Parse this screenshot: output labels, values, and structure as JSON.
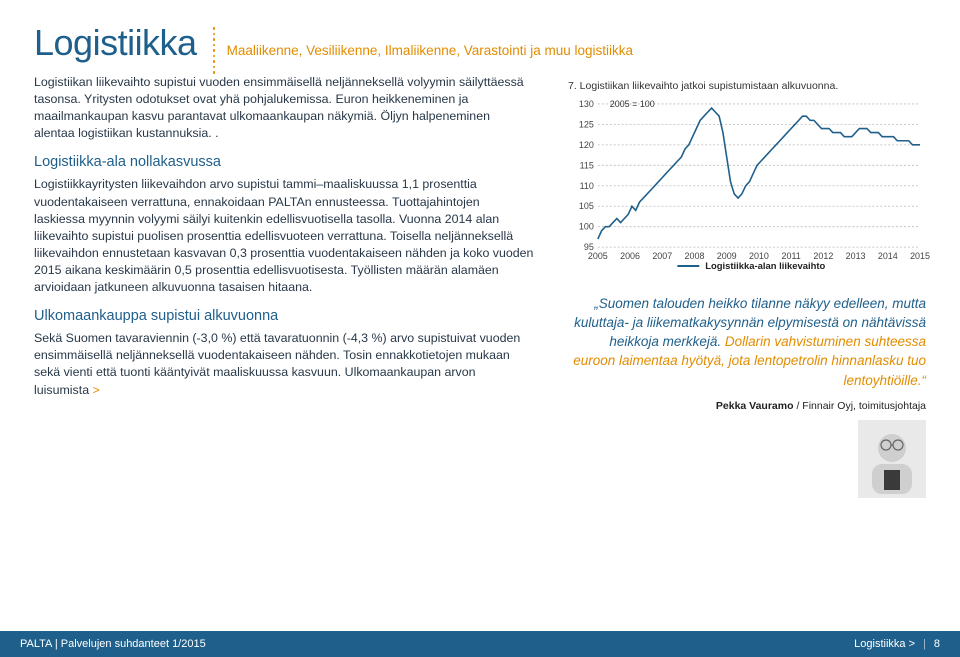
{
  "header": {
    "title": "Logistiikka",
    "subtitle": "Maaliikenne, Vesiliikenne, Ilmaliikenne, Varastointi ja muu logistiikka"
  },
  "body": {
    "intro": "Logistiikan liikevaihto supistui vuoden ensimmäisellä neljänneksellä volyymin säilyttäessä tasonsa. Yritysten odotukset ovat yhä pohjalukemissa. Euron heikkeneminen ja maailmankaupan kasvu parantavat ulkomaankaupan näkymiä. Öljyn halpeneminen alentaa logistiikan kustannuksia. .",
    "h1": "Logistiikka-ala nollakasvussa",
    "p1": "Logistiikkayritysten liikevaihdon arvo supistui tammi–maaliskuussa 1,1 prosenttia vuodentakaiseen verrattuna, ennakoidaan PALTAn ennusteessa. Tuottajahintojen laskiessa myynnin volyymi säilyi kuitenkin edellisvuotisella tasolla. Vuonna 2014 alan liikevaihto supistui puolisen prosenttia edellisvuoteen verrattuna. Toisella neljänneksellä liikevaihdon ennustetaan kasvavan 0,3 prosenttia vuodentakaiseen nähden ja koko vuoden 2015 aikana keskimäärin 0,5 prosenttia edellisvuotisesta. Työllisten määrän alamäen arvioidaan jatkuneen alkuvuonna tasaisen hitaana.",
    "h2": "Ulkomaankauppa supistui alkuvuonna",
    "p2a": "Sekä Suomen tavaraviennin (-3,0 %) että tavaratuonnin (-4,3 %) arvo supistuivat vuoden ensimmäisellä neljänneksellä vuodentakaiseen nähden. Tosin ennakkotietojen mukaan sekä vienti että tuonti kääntyivät maaliskuussa kasvuun. Ulkomaankaupan arvon luisumista ",
    "p2more": ">"
  },
  "chart": {
    "title": "7. Logistiikan liikevaihto jatkoi supistumistaan alkuvuonna.",
    "index_note": "2005 = 100",
    "ylim": [
      95,
      130
    ],
    "ytick_step": 5,
    "xcats": [
      "2005",
      "2006",
      "2007",
      "2008",
      "2009",
      "2010",
      "2011",
      "2012",
      "2013",
      "2014",
      "2015"
    ],
    "series_name": "Logistiikka-alan liikevaihto",
    "series_color": "#1f5f8b",
    "grid_color": "#bbbbbb",
    "background_color": "#ffffff",
    "line_width": 1.6,
    "label_fontsize": 9,
    "values": [
      97,
      99,
      100,
      100,
      101,
      102,
      101,
      102,
      103,
      105,
      104,
      106,
      107,
      108,
      109,
      110,
      111,
      112,
      113,
      114,
      115,
      116,
      117,
      119,
      120,
      122,
      124,
      126,
      127,
      128,
      129,
      128,
      127,
      123,
      117,
      111,
      108,
      107,
      108,
      110,
      111,
      113,
      115,
      116,
      117,
      118,
      119,
      120,
      121,
      122,
      123,
      124,
      125,
      126,
      127,
      127,
      126,
      126,
      125,
      124,
      124,
      124,
      123,
      123,
      123,
      122,
      122,
      122,
      123,
      124,
      124,
      124,
      123,
      123,
      123,
      122,
      122,
      122,
      122,
      121,
      121,
      121,
      121,
      120,
      120,
      120
    ]
  },
  "quote": {
    "lead": "„Suomen talouden heikko tilanne näkyy edelleen, mutta kuluttaja- ja liikematkakysynnän elpymisestä on nähtävissä heikkoja merkkejä.",
    "rest": " Dollarin vahvistuminen suhteessa euroon laimentaa hyötyä, jota lentopetrolin hinnanlasku tuo lentoyhtiöille.“",
    "attrib_name": "Pekka Vauramo",
    "attrib_rest": " / Finnair Oyj, toimitusjohtaja"
  },
  "footer": {
    "left": "PALTA | Palvelujen suhdanteet 1/2015",
    "section": "Logistiikka >",
    "page": "8"
  }
}
